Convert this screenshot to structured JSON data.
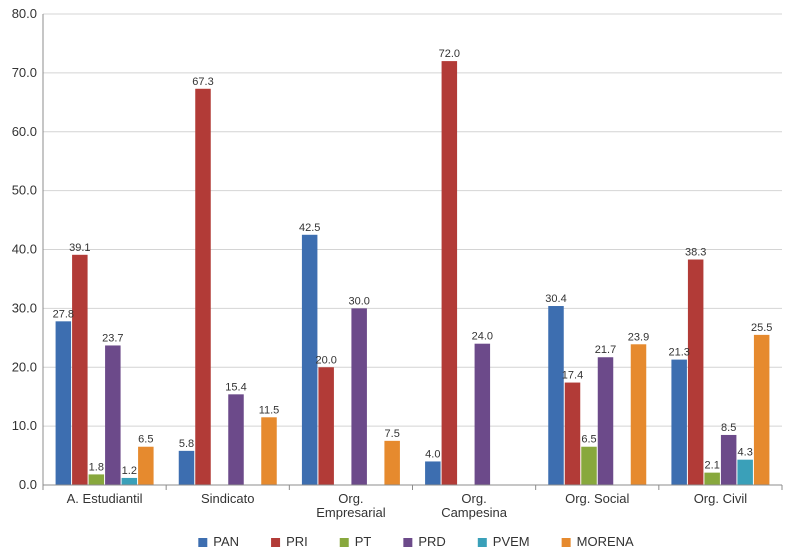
{
  "chart_data": {
    "type": "bar",
    "categories": [
      [
        "A. Estudiantil"
      ],
      [
        "Sindicato"
      ],
      [
        "Org.",
        "Empresarial"
      ],
      [
        "Org.",
        "Campesina"
      ],
      [
        "Org. Social"
      ],
      [
        "Org. Civil"
      ]
    ],
    "series": [
      {
        "name": "PAN",
        "color": "#3d6eb0",
        "values": [
          27.8,
          5.8,
          42.5,
          4.0,
          30.4,
          21.3
        ]
      },
      {
        "name": "PRI",
        "color": "#b23b37",
        "values": [
          39.1,
          67.3,
          20.0,
          72.0,
          17.4,
          38.3
        ]
      },
      {
        "name": "PT",
        "color": "#88a83d",
        "values": [
          1.8,
          null,
          null,
          null,
          6.5,
          2.1
        ]
      },
      {
        "name": "PRD",
        "color": "#6c4a8a",
        "values": [
          23.7,
          15.4,
          30.0,
          24.0,
          21.7,
          8.5
        ]
      },
      {
        "name": "PVEM",
        "color": "#3aa0b9",
        "values": [
          1.2,
          null,
          null,
          null,
          null,
          4.3
        ]
      },
      {
        "name": "MORENA",
        "color": "#e68a2e",
        "values": [
          6.5,
          11.5,
          7.5,
          null,
          23.9,
          25.5
        ]
      }
    ],
    "ylim": [
      0,
      80
    ],
    "yticks": [
      "0.0",
      "10.0",
      "20.0",
      "30.0",
      "40.0",
      "50.0",
      "60.0",
      "70.0",
      "80.0"
    ],
    "grid": true,
    "legend_position": "bottom"
  }
}
